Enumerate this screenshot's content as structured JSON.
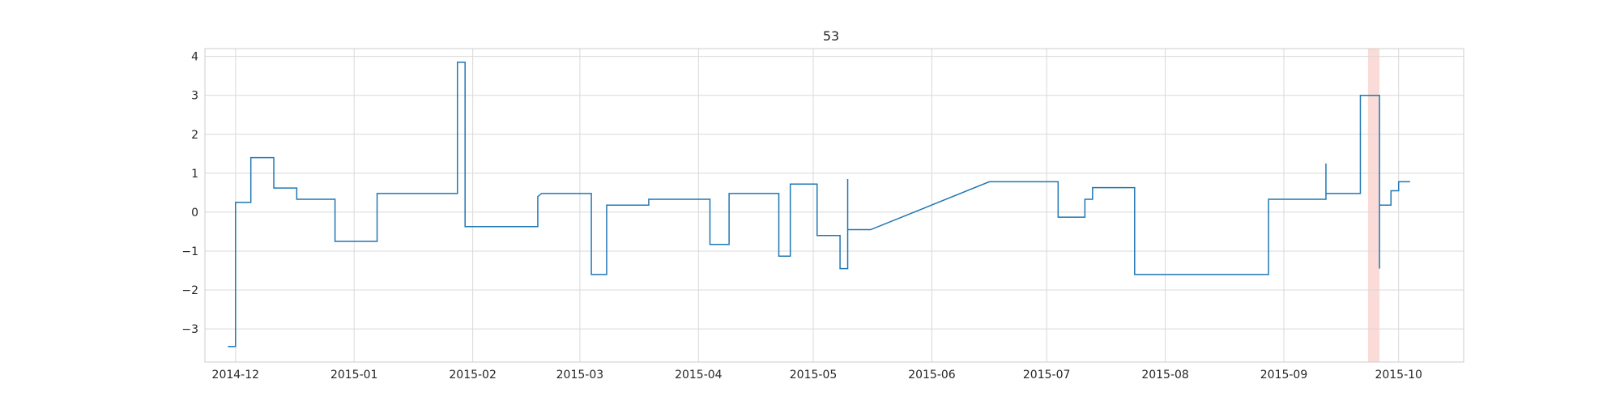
{
  "chart_data": {
    "type": "line",
    "title": "53",
    "xlabel": "",
    "ylabel": "",
    "grid": true,
    "legend": "none",
    "x_axis": {
      "type": "date",
      "range": [
        "2014-11-23",
        "2015-10-18"
      ],
      "ticks": [
        "2014-12",
        "2015-01",
        "2015-02",
        "2015-03",
        "2015-04",
        "2015-05",
        "2015-06",
        "2015-07",
        "2015-08",
        "2015-09",
        "2015-10"
      ]
    },
    "y_axis": {
      "range": [
        -3.85,
        4.2
      ],
      "ticks": [
        -3,
        -2,
        -1,
        0,
        1,
        2,
        3,
        4
      ],
      "tick_labels": [
        "−3",
        "−2",
        "−1",
        "0",
        "1",
        "2",
        "3",
        "4"
      ]
    },
    "highlight_span": {
      "start": "2015-09-23",
      "end": "2015-09-26",
      "color": "#fadbd8"
    },
    "series": [
      {
        "color": "#1f77b4",
        "points": [
          [
            "2014-11-29",
            -3.45
          ],
          [
            "2014-12-01",
            -3.45
          ],
          [
            "2014-12-01",
            0.25
          ],
          [
            "2014-12-05",
            0.25
          ],
          [
            "2014-12-05",
            1.4
          ],
          [
            "2014-12-11",
            1.4
          ],
          [
            "2014-12-11",
            0.62
          ],
          [
            "2014-12-17",
            0.62
          ],
          [
            "2014-12-17",
            0.33
          ],
          [
            "2014-12-27",
            0.33
          ],
          [
            "2014-12-27",
            -0.75
          ],
          [
            "2015-01-07",
            -0.75
          ],
          [
            "2015-01-07",
            0.48
          ],
          [
            "2015-01-28",
            0.48
          ],
          [
            "2015-01-28",
            3.85
          ],
          [
            "2015-01-30",
            3.85
          ],
          [
            "2015-01-30",
            -0.37
          ],
          [
            "2015-02-18",
            -0.37
          ],
          [
            "2015-02-18",
            0.4
          ],
          [
            "2015-02-19",
            0.48
          ],
          [
            "2015-03-04",
            0.48
          ],
          [
            "2015-03-04",
            -1.6
          ],
          [
            "2015-03-08",
            -1.6
          ],
          [
            "2015-03-08",
            0.18
          ],
          [
            "2015-03-19",
            0.18
          ],
          [
            "2015-03-19",
            0.33
          ],
          [
            "2015-04-04",
            0.33
          ],
          [
            "2015-04-04",
            -0.83
          ],
          [
            "2015-04-09",
            -0.83
          ],
          [
            "2015-04-09",
            0.48
          ],
          [
            "2015-04-22",
            0.48
          ],
          [
            "2015-04-22",
            -1.13
          ],
          [
            "2015-04-25",
            -1.13
          ],
          [
            "2015-04-25",
            0.72
          ],
          [
            "2015-05-02",
            0.72
          ],
          [
            "2015-05-02",
            -0.6
          ],
          [
            "2015-05-08",
            -0.6
          ],
          [
            "2015-05-08",
            -1.45
          ],
          [
            "2015-05-10",
            -1.45
          ],
          [
            "2015-05-10",
            0.85
          ],
          [
            "2015-05-10",
            -0.45
          ],
          [
            "2015-05-16",
            -0.45
          ],
          [
            "2015-06-16",
            0.78
          ],
          [
            "2015-07-04",
            0.78
          ],
          [
            "2015-07-04",
            -0.13
          ],
          [
            "2015-07-11",
            -0.13
          ],
          [
            "2015-07-11",
            0.33
          ],
          [
            "2015-07-13",
            0.33
          ],
          [
            "2015-07-13",
            0.63
          ],
          [
            "2015-07-24",
            0.63
          ],
          [
            "2015-07-24",
            -1.6
          ],
          [
            "2015-08-28",
            -1.6
          ],
          [
            "2015-08-28",
            0.33
          ],
          [
            "2015-09-12",
            0.33
          ],
          [
            "2015-09-12",
            1.25
          ],
          [
            "2015-09-12",
            0.48
          ],
          [
            "2015-09-21",
            0.48
          ],
          [
            "2015-09-21",
            3.0
          ],
          [
            "2015-09-26",
            3.0
          ],
          [
            "2015-09-26",
            -1.45
          ],
          [
            "2015-09-26",
            0.18
          ],
          [
            "2015-09-29",
            0.18
          ],
          [
            "2015-09-29",
            0.55
          ],
          [
            "2015-10-01",
            0.55
          ],
          [
            "2015-10-01",
            0.78
          ],
          [
            "2015-10-04",
            0.78
          ]
        ]
      }
    ]
  }
}
